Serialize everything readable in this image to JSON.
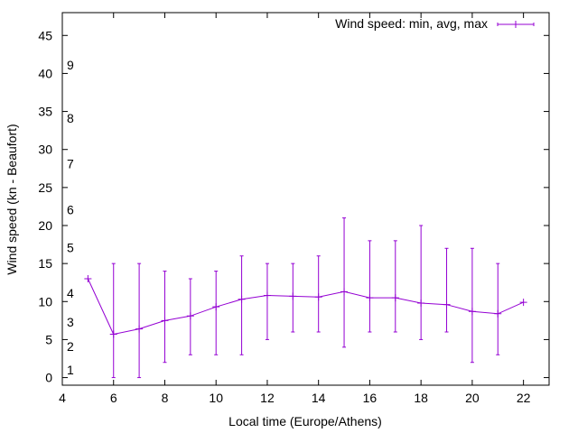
{
  "chart_data": {
    "type": "line",
    "title": "",
    "xlabel": "Local time (Europe/Athens)",
    "ylabel": "Wind speed (kn - Beaufort)",
    "xlim": [
      4,
      23
    ],
    "ylim": [
      -1,
      48
    ],
    "x_ticks": [
      4,
      6,
      8,
      10,
      12,
      14,
      16,
      18,
      20,
      22
    ],
    "y_ticks": [
      0,
      5,
      10,
      15,
      20,
      25,
      30,
      35,
      40,
      45
    ],
    "beaufort_labels": [
      {
        "label": "1",
        "y": 1
      },
      {
        "label": "2",
        "y": 4.1
      },
      {
        "label": "3",
        "y": 7.3
      },
      {
        "label": "4",
        "y": 11.1
      },
      {
        "label": "5",
        "y": 17.1
      },
      {
        "label": "6",
        "y": 22.1
      },
      {
        "label": "7",
        "y": 28.1
      },
      {
        "label": "8",
        "y": 34.1
      },
      {
        "label": "9",
        "y": 41.1
      }
    ],
    "grid": false,
    "legend": "top-right",
    "series": [
      {
        "name": "Wind speed: min, avg, max",
        "color": "#9400d3",
        "x": [
          5,
          6,
          7,
          8,
          9,
          10,
          11,
          12,
          13,
          14,
          15,
          16,
          17,
          18,
          19,
          20,
          21,
          22
        ],
        "avg": [
          13,
          5.7,
          6.4,
          7.5,
          8.1,
          9.3,
          10.3,
          10.8,
          10.7,
          10.6,
          11.3,
          10.5,
          10.5,
          9.8,
          9.6,
          8.7,
          8.4,
          9.9
        ],
        "min": [
          null,
          0,
          0,
          2,
          3,
          3,
          3,
          5,
          6,
          6,
          4,
          6,
          6,
          5,
          6,
          2,
          3,
          null
        ],
        "max": [
          null,
          15,
          15,
          14,
          13,
          14,
          16,
          15,
          15,
          16,
          21,
          18,
          18,
          20,
          17,
          17,
          15,
          null
        ]
      }
    ]
  }
}
